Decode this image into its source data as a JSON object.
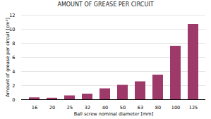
{
  "chart_data": {
    "type": "bar",
    "title": "AMOUNT OF GREASE PER CIRCUIT",
    "xlabel": "Ball screw nominal diameter [mm]",
    "ylabel": "Amount of grease per circuit [cm³]",
    "categories": [
      "16",
      "20",
      "25",
      "32",
      "40",
      "50",
      "63",
      "80",
      "100",
      "125"
    ],
    "values": [
      0.27,
      0.22,
      0.55,
      0.8,
      1.55,
      2.05,
      2.55,
      3.5,
      7.6,
      10.7
    ],
    "color": "#9e3a6a",
    "ylim": [
      0,
      12
    ],
    "yticks": [
      0,
      2,
      4,
      6,
      8,
      10,
      12
    ],
    "grid": true
  }
}
